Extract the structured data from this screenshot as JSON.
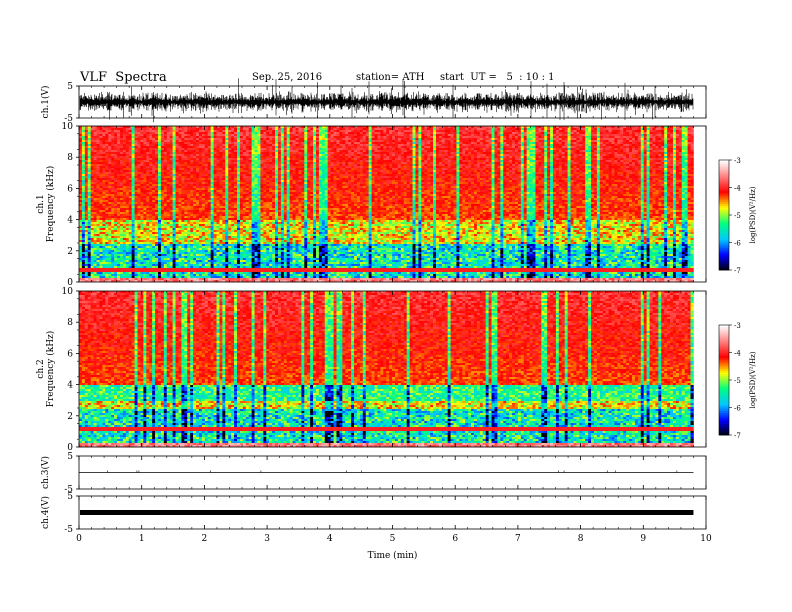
{
  "header": {
    "title": "VLF  Spectra",
    "date": "Sep. 25, 2016",
    "station": "station= ATH",
    "start": "start  UT =   5  : 10 : 1"
  },
  "chart_data": [
    {
      "type": "line",
      "panel": "ch1-waveform",
      "ylabel": "ch.1(V)",
      "ylim": [
        -5,
        5
      ],
      "yticks": [
        "5",
        "-5"
      ]
    },
    {
      "type": "heatmap",
      "panel": "ch1-spectrogram",
      "ylabel": "ch.1\nFrequency  (kHz)",
      "ylim": [
        0,
        10
      ],
      "yticks": [
        "0",
        "2",
        "4",
        "6",
        "8",
        "10"
      ],
      "xlim": [
        0,
        10
      ],
      "colorbar": {
        "label": "log(PSD)(V²/Hz)",
        "range": [
          -7,
          -3
        ],
        "ticks": [
          "-3",
          "-4",
          "-5",
          "-6",
          "-7"
        ]
      }
    },
    {
      "type": "heatmap",
      "panel": "ch2-spectrogram",
      "ylabel": "ch.2\nFrequency  (kHz)",
      "ylim": [
        0,
        10
      ],
      "yticks": [
        "0",
        "2",
        "4",
        "6",
        "8",
        "10"
      ],
      "xlim": [
        0,
        10
      ],
      "colorbar": {
        "label": "log(PSD)(V²/Hz)",
        "range": [
          -7,
          -3
        ],
        "ticks": [
          "-3",
          "-4",
          "-5",
          "-6",
          "-7"
        ]
      }
    },
    {
      "type": "line",
      "panel": "ch3-waveform",
      "ylabel": "ch.3(V)",
      "ylim": [
        -5,
        5
      ],
      "yticks": [
        "5",
        "-5"
      ]
    },
    {
      "type": "line",
      "panel": "ch4-waveform",
      "ylabel": "ch.4(V)",
      "ylim": [
        -5,
        5
      ],
      "yticks": [
        "5",
        "-5"
      ]
    },
    {
      "type": "axis",
      "xlabel": "Time  (min)",
      "xlim": [
        0,
        10
      ],
      "xticks": [
        "0",
        "1",
        "2",
        "3",
        "4",
        "5",
        "6",
        "7",
        "8",
        "9",
        "10"
      ],
      "data_end_min": 9.8
    }
  ],
  "colormap": [
    "#000000",
    "#0000ff",
    "#00c8ff",
    "#00ff80",
    "#ffff00",
    "#ff0000",
    "#ff8080",
    "#ffffff"
  ]
}
